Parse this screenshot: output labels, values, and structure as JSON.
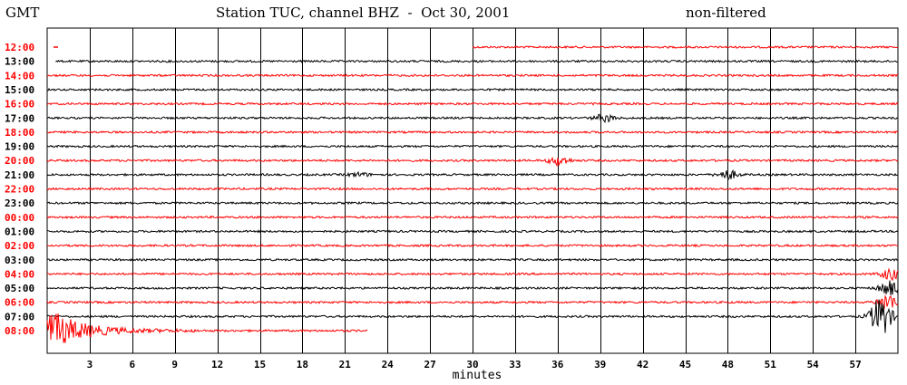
{
  "header": {
    "timezone": "GMT",
    "title": "Station TUC, channel BHZ  -  Oct 30, 2001",
    "filter": "non-filtered"
  },
  "colors": {
    "odd_row": "#ff0000",
    "even_row": "#000000",
    "grid": "#000000"
  },
  "chart_data": {
    "type": "line",
    "title": "Station TUC, channel BHZ  -  Oct 30, 2001",
    "xlabel": "minutes",
    "ylabel": "GMT",
    "xlim": [
      0,
      60
    ],
    "x_ticks": [
      3,
      6,
      9,
      12,
      15,
      18,
      21,
      24,
      27,
      30,
      33,
      36,
      39,
      42,
      45,
      48,
      51,
      54,
      57
    ],
    "grid": true,
    "rows": [
      {
        "hour": "12:00",
        "color": "red",
        "start_min": 30.0,
        "end_min": 60,
        "events": []
      },
      {
        "hour": "13:00",
        "color": "black",
        "start_min": 0.6,
        "end_min": 60,
        "events": []
      },
      {
        "hour": "14:00",
        "color": "red",
        "start_min": 0,
        "end_min": 60,
        "events": []
      },
      {
        "hour": "15:00",
        "color": "black",
        "start_min": 0,
        "end_min": 60,
        "events": []
      },
      {
        "hour": "16:00",
        "color": "red",
        "start_min": 0,
        "end_min": 60,
        "events": []
      },
      {
        "hour": "17:00",
        "color": "black",
        "start_min": 0,
        "end_min": 60,
        "events": [
          {
            "minute": 39.3,
            "amp": 4
          }
        ]
      },
      {
        "hour": "18:00",
        "color": "red",
        "start_min": 0,
        "end_min": 60,
        "events": []
      },
      {
        "hour": "19:00",
        "color": "black",
        "start_min": 0,
        "end_min": 60,
        "events": []
      },
      {
        "hour": "20:00",
        "color": "red",
        "start_min": 0,
        "end_min": 60,
        "events": [
          {
            "minute": 36.1,
            "amp": 5
          }
        ]
      },
      {
        "hour": "21:00",
        "color": "black",
        "start_min": 0,
        "end_min": 60,
        "events": [
          {
            "minute": 48.0,
            "amp": 5
          },
          {
            "minute": 22.0,
            "amp": 2
          }
        ]
      },
      {
        "hour": "22:00",
        "color": "red",
        "start_min": 0,
        "end_min": 60,
        "events": []
      },
      {
        "hour": "23:00",
        "color": "black",
        "start_min": 0,
        "end_min": 60,
        "events": []
      },
      {
        "hour": "00:00",
        "color": "red",
        "start_min": 0,
        "end_min": 60,
        "events": []
      },
      {
        "hour": "01:00",
        "color": "black",
        "start_min": 0,
        "end_min": 60,
        "events": []
      },
      {
        "hour": "02:00",
        "color": "red",
        "start_min": 0,
        "end_min": 60,
        "events": []
      },
      {
        "hour": "03:00",
        "color": "black",
        "start_min": 0,
        "end_min": 60,
        "events": []
      },
      {
        "hour": "04:00",
        "color": "red",
        "start_min": 0,
        "end_min": 60,
        "events": [
          {
            "minute": 59.5,
            "amp": 6
          }
        ]
      },
      {
        "hour": "05:00",
        "color": "black",
        "start_min": 0,
        "end_min": 60,
        "events": [
          {
            "minute": 59.4,
            "amp": 8
          }
        ]
      },
      {
        "hour": "06:00",
        "color": "red",
        "start_min": 0,
        "end_min": 60,
        "events": [
          {
            "minute": 59.3,
            "amp": 9
          }
        ]
      },
      {
        "hour": "07:00",
        "color": "black",
        "start_min": 0,
        "end_min": 60,
        "events": [
          {
            "minute": 58.8,
            "amp": 22
          }
        ]
      },
      {
        "hour": "08:00",
        "color": "red",
        "start_min": 0,
        "end_min": 22.6,
        "events": [
          {
            "minute": 0.5,
            "amp": 18
          }
        ]
      }
    ]
  }
}
